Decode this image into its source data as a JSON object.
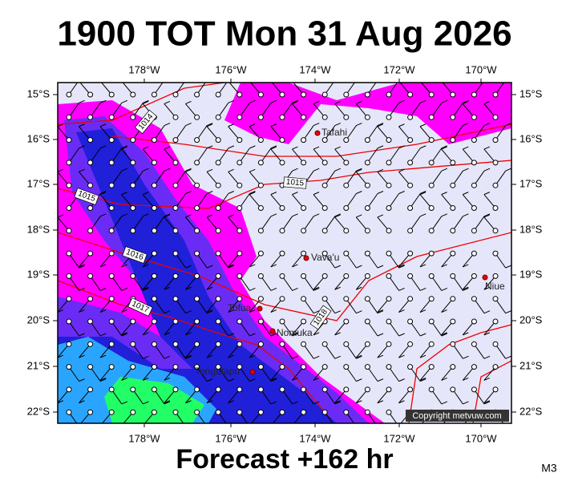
{
  "header": {
    "title": "1900 TOT Mon 31 Aug 2026"
  },
  "map": {
    "lon_labels": [
      "178°W",
      "176°W",
      "174°W",
      "172°W",
      "170°W"
    ],
    "lat_labels": [
      "15°S",
      "16°S",
      "17°S",
      "18°S",
      "19°S",
      "20°S",
      "21°S",
      "22°S"
    ],
    "places": [
      "Tafahi",
      "Vava'u",
      "Niue",
      "Tofua",
      "Nomuka",
      "Tongatapu"
    ],
    "isobar_labels": [
      "1014",
      "1015",
      "1015",
      "1016",
      "1017",
      "1018"
    ],
    "copyright": "Copyright metvuw.com"
  },
  "footer": {
    "forecast": "Forecast +162 hr",
    "code": "M3"
  }
}
